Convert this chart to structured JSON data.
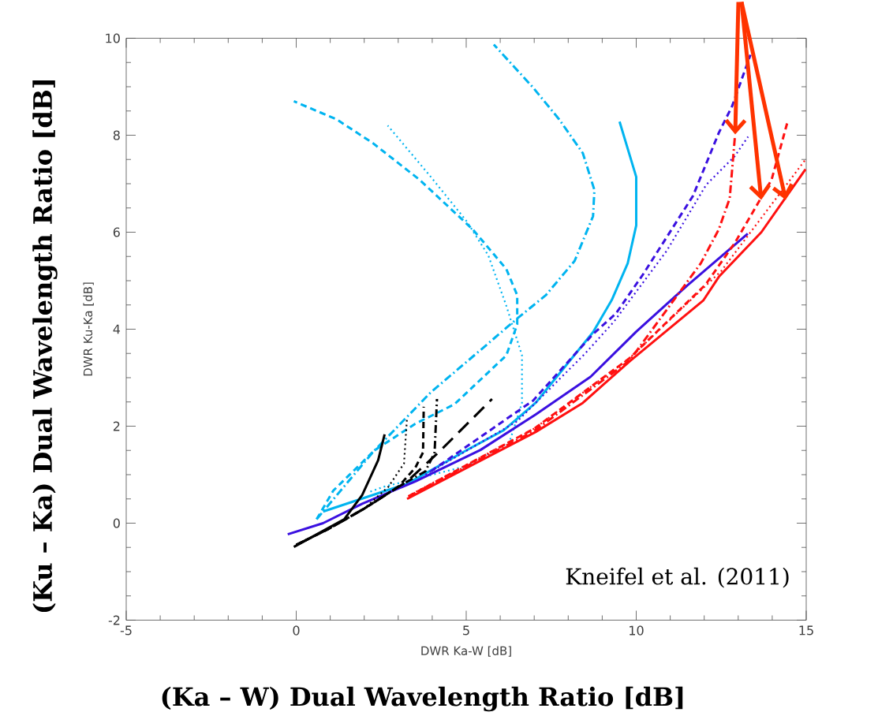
{
  "chart_data": {
    "type": "line",
    "xlabel": "DWR Ka-W [dB]",
    "ylabel": "DWR Ku-Ka [dB]",
    "xlim": [
      -5,
      15
    ],
    "ylim": [
      -2,
      10
    ],
    "xticks": [
      -5,
      0,
      5,
      10,
      15
    ],
    "yticks": [
      -2,
      0,
      2,
      4,
      6,
      8,
      10
    ],
    "annotations": [
      "(Ka – W) Dual Wavelength Ratio [dB]",
      "(Ku – Ka) Dual Wavelength Ratio [dB]",
      "Kneifel et al. (2011)"
    ],
    "series": [
      {
        "color": "#00b4f0",
        "line_style": "solid",
        "x": [
          0.79,
          2.64,
          3.26,
          5.0,
          6.11,
          7.04,
          8.73,
          9.28,
          9.75,
          10.0,
          10.0,
          9.51
        ],
        "values": [
          0.24,
          0.67,
          0.81,
          1.5,
          1.92,
          2.48,
          3.94,
          4.6,
          5.36,
          6.14,
          7.14,
          8.28
        ]
      },
      {
        "color": "#00b4f0",
        "line_style": "dashed",
        "x": [
          0.6,
          1.09,
          2.3,
          3.5,
          4.65,
          6.18,
          6.5,
          6.5,
          6.18,
          5.19,
          3.63,
          2.25,
          1.18,
          -0.07
        ],
        "values": [
          0.08,
          0.67,
          1.5,
          2.05,
          2.45,
          3.46,
          4.1,
          4.7,
          5.24,
          6.06,
          7.08,
          7.84,
          8.33,
          8.7
        ]
      },
      {
        "color": "#00b4f0",
        "line_style": "dashdot",
        "x": [
          0.6,
          2.25,
          3.96,
          5.42,
          6.5,
          7.34,
          8.19,
          8.73,
          8.77,
          8.43,
          7.73,
          6.97,
          5.81
        ],
        "values": [
          0.08,
          1.46,
          2.7,
          3.57,
          4.22,
          4.7,
          5.41,
          6.33,
          6.87,
          7.63,
          8.33,
          8.98,
          9.87
        ]
      },
      {
        "color": "#00b4f0",
        "line_style": "dotted",
        "x": [
          2.18,
          2.57,
          3.5,
          5.02,
          6.27,
          6.64,
          6.64,
          6.18,
          5.65,
          5.02,
          3.96,
          2.69
        ],
        "values": [
          0.65,
          0.75,
          0.91,
          1.18,
          1.67,
          2.48,
          3.46,
          4.48,
          5.52,
          6.22,
          7.14,
          8.2
        ]
      },
      {
        "color": "#3a10e0",
        "line_style": "solid",
        "x": [
          -0.25,
          0.79,
          1.94,
          3.5,
          5.42,
          7.04,
          8.66,
          10.0,
          11.5,
          13.28
        ],
        "values": [
          -0.23,
          0.0,
          0.4,
          0.86,
          1.51,
          2.24,
          3.02,
          3.95,
          4.9,
          5.97
        ]
      },
      {
        "color": "#3a10e0",
        "line_style": "dashed",
        "x": [
          3.96,
          6.97,
          8.73,
          9.4,
          10.2,
          11.67,
          12.43,
          12.82,
          13.36
        ],
        "values": [
          1.07,
          2.53,
          3.9,
          4.32,
          5.13,
          6.75,
          8.05,
          8.6,
          9.66
        ]
      },
      {
        "color": "#3a10e0",
        "line_style": "dotted",
        "x": [
          3.8,
          6.5,
          8.5,
          9.35,
          10.9,
          12.06,
          12.9,
          13.29
        ],
        "values": [
          1.0,
          2.1,
          3.5,
          4.16,
          5.62,
          6.98,
          7.57,
          7.97
        ]
      },
      {
        "color": "#ff1010",
        "line_style": "solid",
        "x": [
          3.26,
          7.04,
          8.43,
          9.81,
          11.97,
          12.43,
          13.68,
          14.98
        ],
        "values": [
          0.5,
          1.88,
          2.48,
          3.34,
          4.59,
          5.08,
          6.0,
          7.3
        ]
      },
      {
        "color": "#ff1010",
        "line_style": "dashed",
        "x": [
          3.3,
          7.0,
          9.8,
          12.04,
          12.9,
          13.36,
          13.98,
          14.44
        ],
        "values": [
          0.55,
          1.95,
          3.4,
          4.92,
          5.78,
          6.33,
          7.08,
          8.25
        ]
      },
      {
        "color": "#ff1010",
        "line_style": "dashdot",
        "x": [
          3.3,
          7.0,
          9.8,
          11.9,
          12.43,
          12.75,
          12.9
        ],
        "values": [
          0.55,
          1.9,
          3.35,
          5.36,
          6.06,
          6.7,
          7.95
        ]
      },
      {
        "color": "#ff1010",
        "line_style": "dotted",
        "x": [
          3.4,
          7.0,
          9.8,
          12.5,
          14.98
        ],
        "values": [
          0.6,
          1.95,
          3.4,
          5.2,
          7.5
        ]
      },
      {
        "color": "#000000",
        "line_style": "solid",
        "x": [
          -0.07,
          1.41,
          1.94,
          2.41,
          2.6
        ],
        "values": [
          -0.49,
          0.08,
          0.58,
          1.3,
          1.83
        ]
      },
      {
        "color": "#000000",
        "line_style": "dotted",
        "x": [
          0.0,
          1.0,
          2.0,
          2.71,
          3.17,
          3.26
        ],
        "values": [
          -0.45,
          -0.1,
          0.3,
          0.75,
          1.23,
          2.19
        ]
      },
      {
        "color": "#000000",
        "line_style": "dashed",
        "x": [
          0.0,
          1.0,
          2.0,
          3.0,
          3.5,
          3.73,
          3.75
        ],
        "values": [
          -0.45,
          -0.1,
          0.3,
          0.75,
          1.14,
          1.46,
          2.4
        ]
      },
      {
        "color": "#000000",
        "line_style": "dashdot",
        "x": [
          0.0,
          1.0,
          2.0,
          3.0,
          3.8,
          4.07,
          4.14
        ],
        "values": [
          -0.45,
          -0.1,
          0.3,
          0.75,
          1.07,
          1.46,
          2.56
        ]
      },
      {
        "color": "#000000",
        "line_style": "longdashed",
        "x": [
          0.0,
          1.0,
          2.0,
          3.26,
          4.26,
          5.76
        ],
        "values": [
          -0.45,
          -0.1,
          0.3,
          0.86,
          1.51,
          2.56
        ]
      }
    ]
  }
}
